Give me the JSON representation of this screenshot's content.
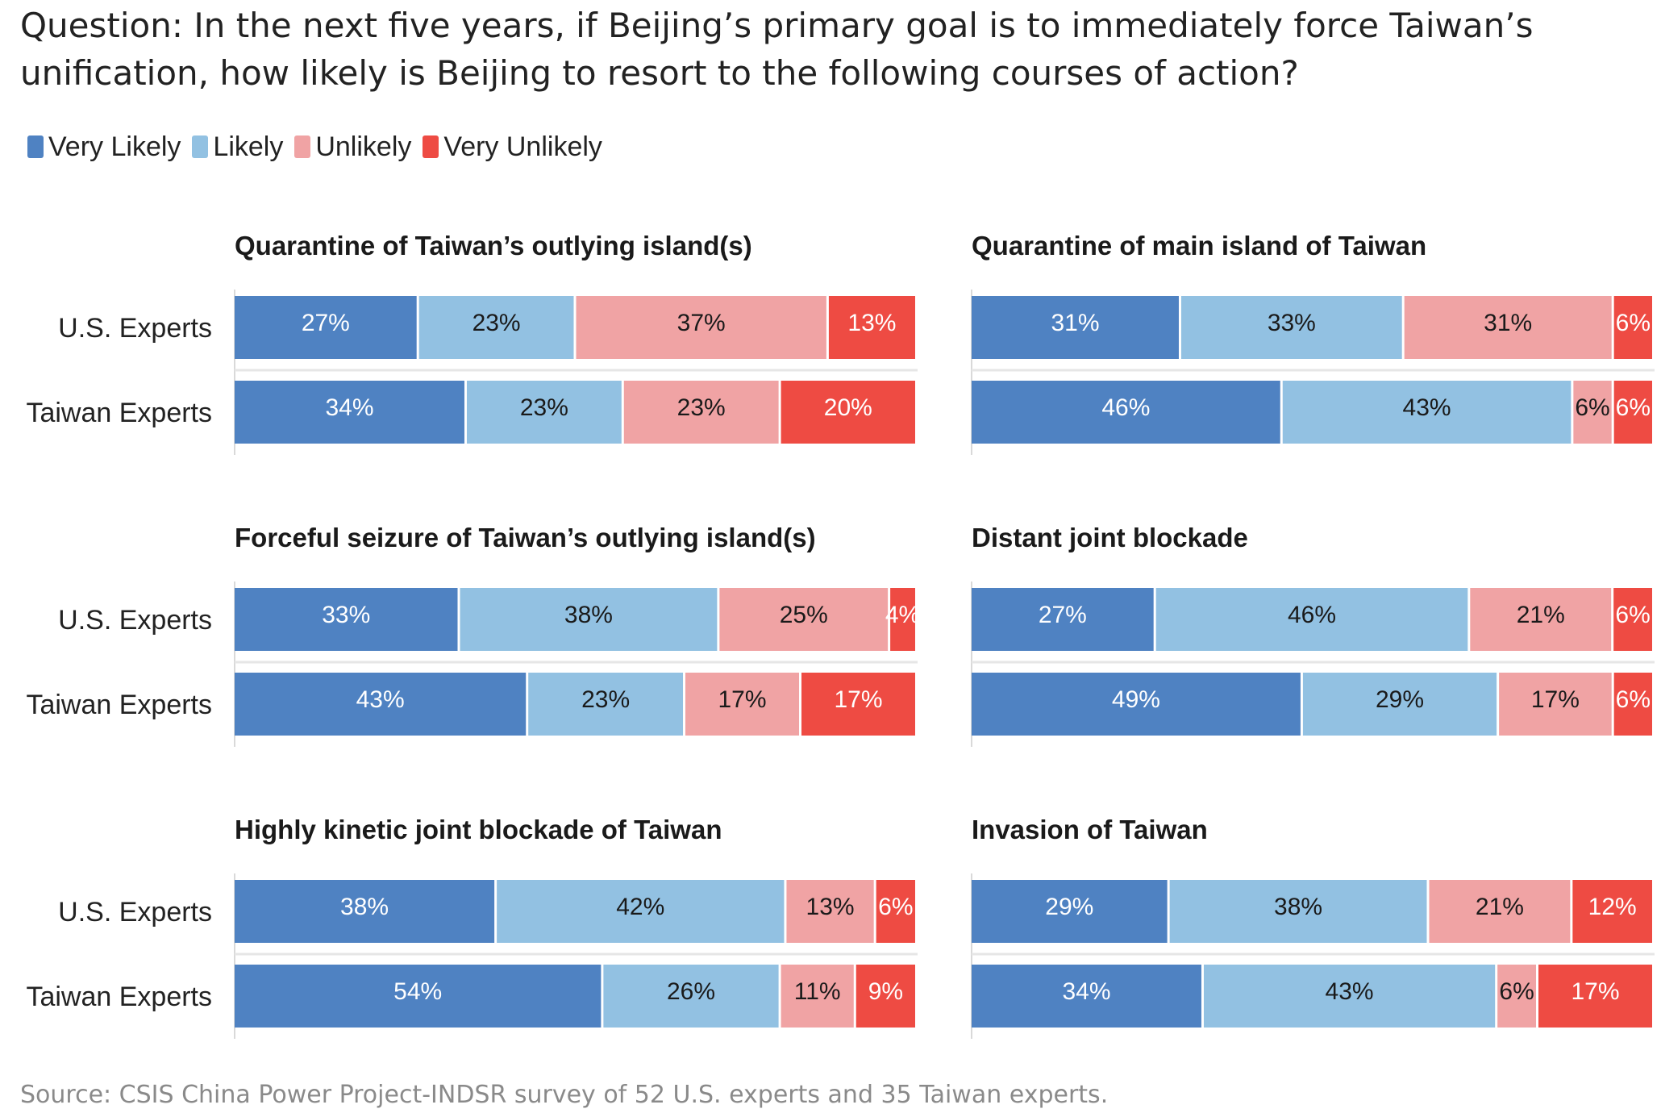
{
  "title_lines": [
    "Question: In the next five years, if Beijing’s primary goal is to immediately force Taiwan’s",
    "unification, how likely is Beijing to resort to the following courses of action?"
  ],
  "source": "Source: CSIS China Power Project-INDSR survey of 52 U.S. experts and 35 Taiwan experts.",
  "colors": {
    "very_likely": "#4f82c2",
    "likely": "#92c1e2",
    "unlikely": "#f0a3a4",
    "very_unlikely": "#ee4b43"
  },
  "chart_data": {
    "type": "bar",
    "orientation": "horizontal",
    "stacked": true,
    "legend_position": "top-left",
    "categories": [
      "Very Likely",
      "Likely",
      "Unlikely",
      "Very Unlikely"
    ],
    "rows": [
      "U.S. Experts",
      "Taiwan Experts"
    ],
    "panels": [
      {
        "title": "Quarantine of Taiwan’s outlying island(s)",
        "series": [
          {
            "name": "U.S. Experts",
            "values": [
              27,
              23,
              37,
              13
            ]
          },
          {
            "name": "Taiwan Experts",
            "values": [
              34,
              23,
              23,
              20
            ]
          }
        ]
      },
      {
        "title": "Quarantine of main island of Taiwan",
        "series": [
          {
            "name": "U.S. Experts",
            "values": [
              31,
              33,
              31,
              6
            ]
          },
          {
            "name": "Taiwan Experts",
            "values": [
              46,
              43,
              6,
              6
            ]
          }
        ]
      },
      {
        "title": "Forceful seizure of Taiwan’s outlying island(s)",
        "series": [
          {
            "name": "U.S. Experts",
            "values": [
              33,
              38,
              25,
              4
            ]
          },
          {
            "name": "Taiwan Experts",
            "values": [
              43,
              23,
              17,
              17
            ]
          }
        ]
      },
      {
        "title": "Distant joint blockade",
        "series": [
          {
            "name": "U.S. Experts",
            "values": [
              27,
              46,
              21,
              6
            ]
          },
          {
            "name": "Taiwan Experts",
            "values": [
              49,
              29,
              17,
              6
            ]
          }
        ]
      },
      {
        "title": "Highly kinetic joint blockade of Taiwan",
        "series": [
          {
            "name": "U.S. Experts",
            "values": [
              38,
              42,
              13,
              6
            ]
          },
          {
            "name": "Taiwan Experts",
            "values": [
              54,
              26,
              11,
              9
            ]
          }
        ]
      },
      {
        "title": "Invasion of Taiwan",
        "series": [
          {
            "name": "U.S. Experts",
            "values": [
              29,
              38,
              21,
              12
            ]
          },
          {
            "name": "Taiwan Experts",
            "values": [
              34,
              43,
              6,
              17
            ]
          }
        ]
      }
    ]
  }
}
